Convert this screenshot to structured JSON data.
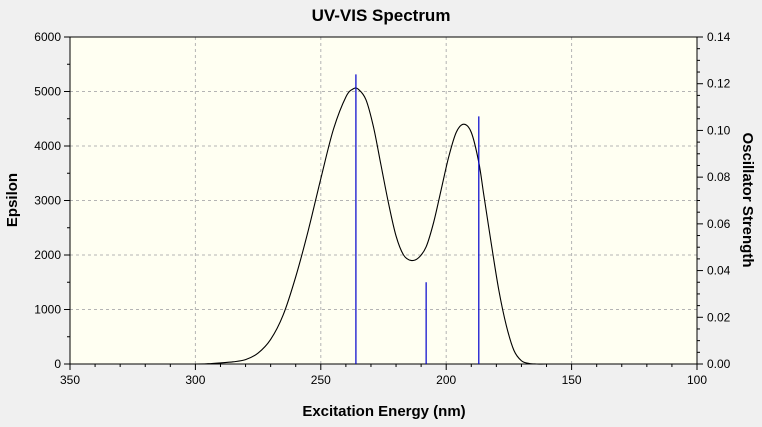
{
  "chart_data": {
    "type": "line",
    "title": "UV-VIS Spectrum",
    "xlabel": "Excitation Energy (nm)",
    "ylabel": "Epsilon",
    "y2label": "Oscillator Strength",
    "xlim": [
      350,
      100
    ],
    "xaxis_reversed": true,
    "ylim": [
      0,
      6000
    ],
    "y2lim": [
      0,
      0.14
    ],
    "x_ticks": [
      "350",
      "300",
      "250",
      "200",
      "150",
      "100"
    ],
    "y_ticks": [
      "0",
      "1000",
      "2000",
      "3000",
      "4000",
      "5000",
      "6000"
    ],
    "y2_ticks": [
      "0.00",
      "0.02",
      "0.04",
      "0.06",
      "0.08",
      "0.10",
      "0.12",
      "0.14"
    ],
    "grid": true,
    "series": [
      {
        "type": "line",
        "color": "#000000",
        "x": [
          343,
          330,
          315,
          300,
          295,
          290,
          285,
          280,
          275,
          270,
          265,
          260,
          255,
          250,
          245,
          240,
          237,
          235,
          232,
          229,
          226,
          223,
          220,
          217,
          214,
          211,
          208,
          205,
          202,
          199,
          196,
          193,
          190,
          187,
          185,
          182,
          179,
          176,
          173,
          170,
          167,
          164,
          160,
          150,
          140,
          130,
          120,
          110,
          102
        ],
        "y": [
          0,
          0,
          0,
          0,
          5,
          20,
          40,
          80,
          200,
          450,
          900,
          1600,
          2450,
          3400,
          4300,
          4900,
          5050,
          5040,
          4850,
          4350,
          3650,
          2950,
          2350,
          2000,
          1900,
          1950,
          2150,
          2600,
          3200,
          3800,
          4250,
          4400,
          4250,
          3700,
          3100,
          2200,
          1350,
          700,
          250,
          60,
          10,
          0,
          0,
          0,
          0,
          0,
          0,
          0,
          0
        ]
      },
      {
        "type": "stick",
        "axis": "right",
        "color": "#0000cc",
        "x": [
          236,
          208,
          187
        ],
        "y": [
          0.124,
          0.035,
          0.106
        ]
      }
    ]
  }
}
